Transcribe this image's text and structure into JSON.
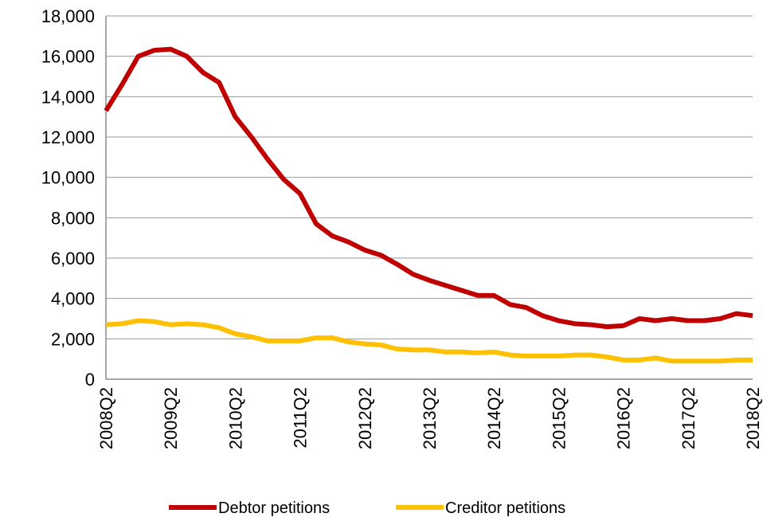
{
  "chart_data": {
    "type": "line",
    "categories": [
      "2008Q2",
      null,
      null,
      null,
      "2009Q2",
      null,
      null,
      null,
      "2010Q2",
      null,
      null,
      null,
      "2011Q2",
      null,
      null,
      null,
      "2012Q2",
      null,
      null,
      null,
      "2013Q2",
      null,
      null,
      null,
      "2014Q2",
      null,
      null,
      null,
      "2015Q2",
      null,
      null,
      null,
      "2016Q2",
      null,
      null,
      null,
      "2017Q2",
      null,
      null,
      null,
      "2018Q2"
    ],
    "series": [
      {
        "name": "Debtor petitions",
        "color": "#c00000",
        "values": [
          13300,
          14600,
          16000,
          16300,
          16350,
          16000,
          15200,
          14700,
          13000,
          12000,
          10900,
          9900,
          9200,
          7700,
          7100,
          6800,
          6400,
          6150,
          5700,
          5200,
          4900,
          4650,
          4400,
          4150,
          4150,
          3700,
          3550,
          3150,
          2900,
          2750,
          2700,
          2600,
          2650,
          3000,
          2900,
          3000,
          2900,
          2900,
          3000,
          3250,
          3150
        ]
      },
      {
        "name": "Creditor petitions",
        "color": "#ffc000",
        "values": [
          2700,
          2750,
          2900,
          2850,
          2700,
          2750,
          2700,
          2550,
          2250,
          2100,
          1900,
          1900,
          1900,
          2050,
          2050,
          1850,
          1750,
          1700,
          1500,
          1450,
          1450,
          1350,
          1350,
          1300,
          1350,
          1200,
          1150,
          1150,
          1150,
          1200,
          1200,
          1100,
          950,
          950,
          1050,
          900,
          900,
          900,
          900,
          950,
          950
        ]
      }
    ],
    "ylim": [
      0,
      18000
    ],
    "yticks": [
      0,
      {
        "value": 2000,
        "label": "2,000"
      },
      {
        "value": 4000,
        "label": "4,000"
      },
      {
        "value": 6000,
        "label": "6,000"
      },
      {
        "value": 8000,
        "label": "8,000"
      },
      {
        "value": 10000,
        "label": "10,000"
      },
      {
        "value": 12000,
        "label": "12,000"
      },
      {
        "value": 14000,
        "label": "14,000"
      },
      {
        "value": 16000,
        "label": "16,000"
      },
      {
        "value": 18000,
        "label": "18,000"
      }
    ],
    "grid": true,
    "legend": "bottom"
  }
}
